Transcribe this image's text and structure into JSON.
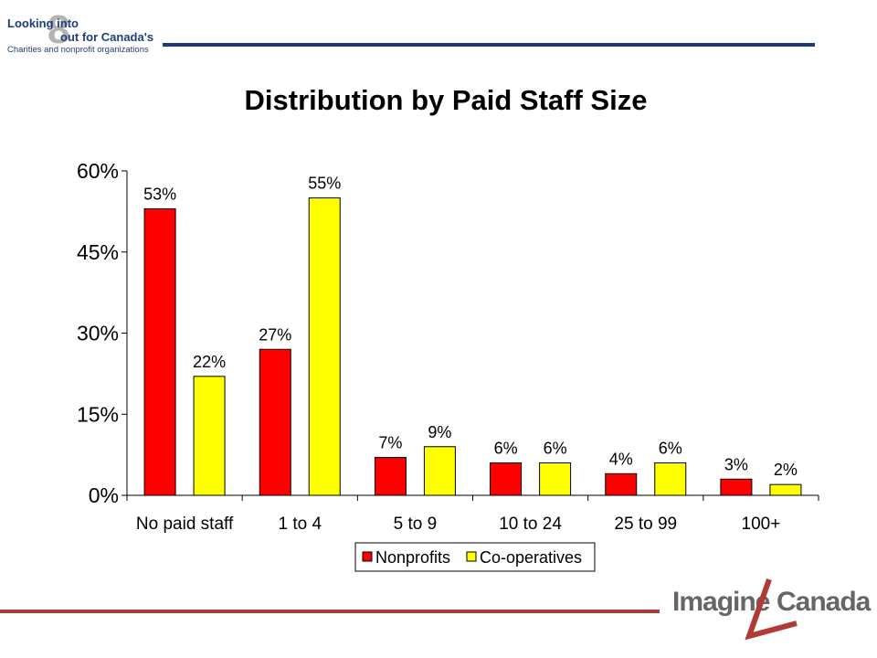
{
  "header": {
    "logo_line1": "Looking into",
    "logo_line2": "out for Canada's",
    "logo_line3": "Charities and nonprofit organizations",
    "logo_eight": "8"
  },
  "colors": {
    "nonprofits": "#ff0000",
    "cooperatives": "#ffff00",
    "header_rule": "#1c3a78",
    "footer_rule": "#b03a36"
  },
  "chart_data": {
    "type": "bar",
    "title": "Distribution by Paid Staff Size",
    "categories": [
      "No paid staff",
      "1 to 4",
      "5 to 9",
      "10 to 24",
      "25 to 99",
      "100+"
    ],
    "series": [
      {
        "name": "Nonprofits",
        "values": [
          53,
          27,
          7,
          6,
          4,
          3
        ],
        "labels": [
          "53%",
          "27%",
          "7%",
          "6%",
          "4%",
          "3%"
        ]
      },
      {
        "name": "Co-operatives",
        "values": [
          22,
          55,
          9,
          6,
          6,
          2
        ],
        "labels": [
          "22%",
          "55%",
          "9%",
          "6%",
          "6%",
          "2%"
        ]
      }
    ],
    "yticks": [
      "0%",
      "15%",
      "30%",
      "45%",
      "60%"
    ],
    "ytick_values": [
      0,
      15,
      30,
      45,
      60
    ],
    "ylim": [
      0,
      60
    ],
    "grid": false,
    "legend_position": "bottom"
  },
  "footer": {
    "logo_left": "Imagine",
    "logo_right": "Canada"
  }
}
